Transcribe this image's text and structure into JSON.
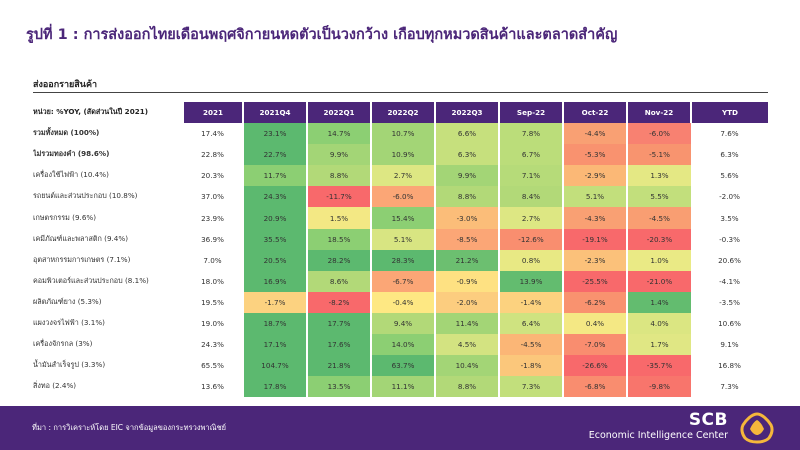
{
  "title": "รูปที่ 1 : การส่งออกไทยเดือนพฤศจิกายนหดตัวเป็นวงกว้าง เกือบทุกหมวดสินค้าและตลาดสำคัญ",
  "section_label": "ส่งออกรายสินค้า",
  "table": {
    "header_label": "หน่วย: %YOY, (สัดส่วนในปี 2021)",
    "columns": [
      "2021",
      "2021Q4",
      "2022Q1",
      "2022Q2",
      "2022Q3",
      "Sep-22",
      "Oct-22",
      "Nov-22",
      "YTD"
    ],
    "rows": [
      {
        "label": "รวมทั้งหมด (100%)",
        "bold": true,
        "values": [
          "17.4%",
          "23.1%",
          "14.7%",
          "10.7%",
          "6.6%",
          "7.8%",
          "-4.4%",
          "-6.0%",
          "7.6%"
        ]
      },
      {
        "label": "ไม่รวมทองคำ (98.6%)",
        "bold": true,
        "values": [
          "22.8%",
          "22.7%",
          "9.9%",
          "10.9%",
          "6.3%",
          "6.7%",
          "-5.3%",
          "-5.1%",
          "6.3%"
        ]
      },
      {
        "label": "เครื่องใช้ไฟฟ้า (10.4%)",
        "bold": false,
        "values": [
          "20.3%",
          "11.7%",
          "8.8%",
          "2.7%",
          "9.9%",
          "7.1%",
          "-2.9%",
          "1.3%",
          "5.6%"
        ]
      },
      {
        "label": "รถยนต์และส่วนประกอบ (10.8%)",
        "bold": false,
        "values": [
          "37.0%",
          "24.3%",
          "-11.7%",
          "-6.0%",
          "8.8%",
          "8.4%",
          "5.1%",
          "5.5%",
          "-2.0%"
        ]
      },
      {
        "label": "เกษตรกรรม (9.6%)",
        "bold": false,
        "values": [
          "23.9%",
          "20.9%",
          "1.5%",
          "15.4%",
          "-3.0%",
          "2.7%",
          "-4.3%",
          "-4.5%",
          "3.5%"
        ]
      },
      {
        "label": "เคมีภัณฑ์และพลาสติก (9.4%)",
        "bold": false,
        "values": [
          "36.9%",
          "35.5%",
          "18.5%",
          "5.1%",
          "-8.5%",
          "-12.6%",
          "-19.1%",
          "-20.3%",
          "-0.3%"
        ]
      },
      {
        "label": "อุตสาหกรรมการเกษตร (7.1%)",
        "bold": false,
        "values": [
          "7.0%",
          "20.5%",
          "28.2%",
          "28.3%",
          "21.2%",
          "0.8%",
          "-2.3%",
          "1.0%",
          "20.6%"
        ]
      },
      {
        "label": "คอมพิวเตอร์และส่วนประกอบ (8.1%)",
        "bold": false,
        "values": [
          "18.0%",
          "16.9%",
          "8.6%",
          "-6.7%",
          "-0.9%",
          "13.9%",
          "-25.5%",
          "-21.0%",
          "-4.1%"
        ]
      },
      {
        "label": "ผลิตภัณฑ์ยาง (5.3%)",
        "bold": false,
        "values": [
          "19.5%",
          "-1.7%",
          "-8.2%",
          "-0.4%",
          "-2.0%",
          "-1.4%",
          "-6.2%",
          "1.4%",
          "-3.5%"
        ]
      },
      {
        "label": "แผงวงจรไฟฟ้า (3.1%)",
        "bold": false,
        "values": [
          "19.0%",
          "18.7%",
          "17.7%",
          "9.4%",
          "11.4%",
          "6.4%",
          "0.4%",
          "4.0%",
          "10.6%"
        ]
      },
      {
        "label": "เครื่องจักรกล (3%)",
        "bold": false,
        "values": [
          "24.3%",
          "17.1%",
          "17.6%",
          "14.0%",
          "4.5%",
          "-4.5%",
          "-7.0%",
          "1.7%",
          "9.1%"
        ]
      },
      {
        "label": "น้ำมันสำเร็จรูป (3.3%)",
        "bold": false,
        "values": [
          "65.5%",
          "104.7%",
          "21.8%",
          "63.7%",
          "10.4%",
          "-1.8%",
          "-26.6%",
          "-35.7%",
          "16.8%"
        ]
      },
      {
        "label": "สิ่งทอ (2.4%)",
        "bold": false,
        "values": [
          "13.6%",
          "17.8%",
          "13.5%",
          "11.1%",
          "8.8%",
          "7.3%",
          "-6.8%",
          "-9.8%",
          "7.3%"
        ]
      }
    ]
  },
  "colors": {
    "brand_purple": "#4b2679",
    "cell_colors": [
      [
        "#5cb96f",
        "#8ccf73",
        "#a3d576",
        "#c6e07d",
        "#bbdd7a",
        "#f9a073",
        "#f88171"
      ],
      [
        "#5cb96f",
        "#a3d576",
        "#a3d576",
        "#c6e07d",
        "#bbdd7a",
        "#f9926f",
        "#f8946f"
      ],
      [
        "#8ccf73",
        "#b2d978",
        "#dde783",
        "#a3d576",
        "#b6db79",
        "#fbb876",
        "#e4e884"
      ],
      [
        "#5cb96f",
        "#f8696b",
        "#fba676",
        "#b2d978",
        "#b2d978",
        "#c2df7c",
        "#c2df7c"
      ],
      [
        "#5cb96f",
        "#f3e884",
        "#8ccf73",
        "#fbbd79",
        "#dde783",
        "#f9a073",
        "#f99e72"
      ],
      [
        "#5cb96f",
        "#8ccf73",
        "#d8e582",
        "#fba676",
        "#f98e6f",
        "#f8696b",
        "#f8696b"
      ],
      [
        "#5cb96f",
        "#5cb96f",
        "#5cb96f",
        "#6cbf70",
        "#e8e984",
        "#fbc17a",
        "#eaea85"
      ],
      [
        "#5cb96f",
        "#b2d978",
        "#fba676",
        "#fee182",
        "#63bc6f",
        "#f8696b",
        "#f8696b"
      ],
      [
        "#fcd280",
        "#f8696b",
        "#fee883",
        "#fccd7f",
        "#fcd27f",
        "#f9926f",
        "#63bc6f"
      ],
      [
        "#5cb96f",
        "#5cb96f",
        "#b2d978",
        "#a3d576",
        "#cfe380",
        "#f4e884",
        "#dbe682"
      ],
      [
        "#5cb96f",
        "#5cb96f",
        "#8ccf73",
        "#d3e381",
        "#fbb676",
        "#f98d6f",
        "#e0e784"
      ],
      [
        "#5cb96f",
        "#5cb96f",
        "#5cb96f",
        "#a3d576",
        "#fbc77b",
        "#f8696b",
        "#f8696b"
      ],
      [
        "#5cb96f",
        "#8ccf73",
        "#a3d576",
        "#b2d978",
        "#c2df7c",
        "#f98d6f",
        "#f8756c"
      ]
    ]
  },
  "footer": {
    "source": "ที่มา : การวิเคราะห์โดย EIC จากข้อมูลของกระทรวงพาณิชย์",
    "logo_name": "SCB",
    "logo_subtitle": "Economic Intelligence Center"
  }
}
